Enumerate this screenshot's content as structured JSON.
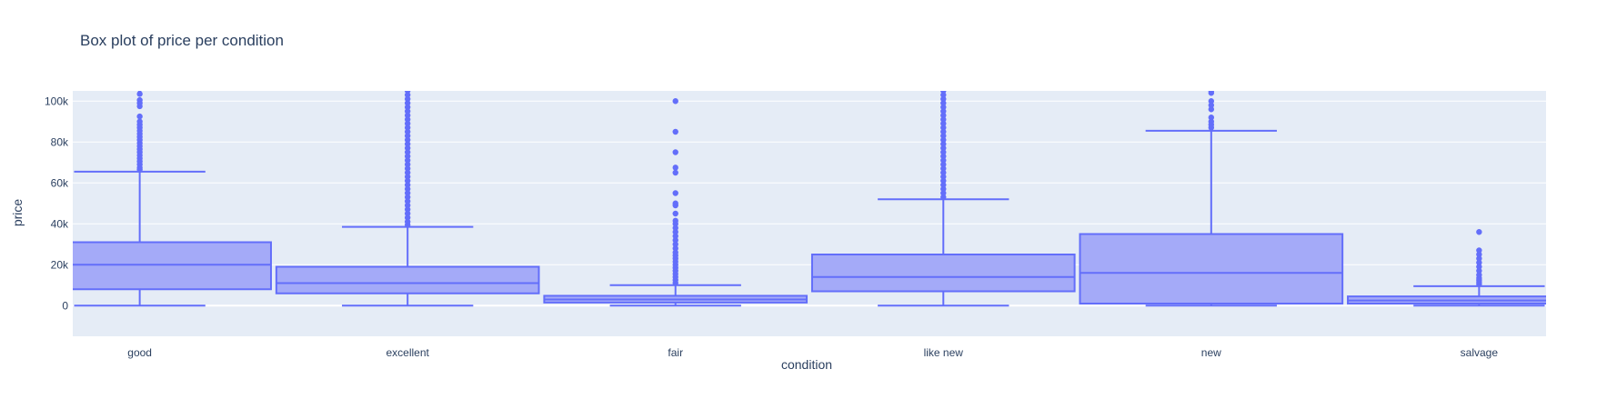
{
  "chart_data": {
    "type": "box",
    "title": "Box plot of price per condition",
    "xlabel": "condition",
    "ylabel": "price",
    "ylim": [
      -15000,
      105000
    ],
    "yticks": [
      0,
      20000,
      40000,
      60000,
      80000,
      100000
    ],
    "ytick_labels": [
      "0",
      "20k",
      "40k",
      "60k",
      "80k",
      "100k"
    ],
    "grid": true,
    "colors": {
      "box_line": "#636efa",
      "box_fill": "#a4aaf8",
      "plot_bg": "#e5ecf6",
      "grid": "#ffffff",
      "text": "#2a3f5f"
    },
    "categories": [
      "good",
      "excellent",
      "fair",
      "like new",
      "new",
      "salvage"
    ],
    "boxes": [
      {
        "category": "good",
        "min": 0,
        "q1": 8000,
        "median": 20000,
        "q3": 31000,
        "max": 65500,
        "outliers": [
          66500,
          67500,
          69000,
          70500,
          72000,
          73500,
          75000,
          76500,
          78000,
          79500,
          81000,
          82500,
          84000,
          85500,
          87000,
          88500,
          90000,
          92500,
          97500,
          99000,
          100500,
          103500,
          106000
        ]
      },
      {
        "category": "excellent",
        "min": 0,
        "q1": 6000,
        "median": 11000,
        "q3": 19000,
        "max": 38500,
        "outliers": [
          39500,
          41000,
          43000,
          45000,
          47000,
          49000,
          51000,
          53000,
          55000,
          57000,
          59000,
          61000,
          63000,
          65000,
          67000,
          69000,
          71000,
          73000,
          75000,
          77000,
          79000,
          81000,
          83000,
          85000,
          87000,
          89000,
          91000,
          93000,
          95000,
          97000,
          99000,
          101000,
          103000,
          105000
        ]
      },
      {
        "category": "fair",
        "min": 0,
        "q1": 1500,
        "median": 3000,
        "q3": 4800,
        "max": 10000,
        "outliers": [
          11000,
          12500,
          14000,
          15500,
          17000,
          18500,
          20000,
          21500,
          23000,
          24500,
          26000,
          28000,
          30000,
          32000,
          34000,
          36000,
          38000,
          40000,
          41500,
          45000,
          49000,
          50000,
          55000,
          65000,
          67500,
          75000,
          85000,
          100000
        ]
      },
      {
        "category": "like new",
        "min": 0,
        "q1": 7000,
        "median": 14000,
        "q3": 25000,
        "max": 52000,
        "outliers": [
          53000,
          55000,
          57000,
          59000,
          61000,
          63000,
          65000,
          67000,
          69000,
          71000,
          73000,
          75000,
          77000,
          79000,
          81000,
          83000,
          85000,
          87000,
          89000,
          91000,
          93000,
          95000,
          97000,
          99000,
          101000,
          103000,
          105000
        ]
      },
      {
        "category": "new",
        "min": 0,
        "q1": 1000,
        "median": 16000,
        "q3": 35000,
        "max": 85500,
        "outliers": [
          87000,
          88500,
          90000,
          92000,
          96000,
          98000,
          100000,
          104000,
          105000
        ]
      },
      {
        "category": "salvage",
        "min": 0,
        "q1": 1000,
        "median": 2500,
        "q3": 4500,
        "max": 9500,
        "outliers": [
          10500,
          11500,
          12500,
          13500,
          15000,
          17000,
          19000,
          21000,
          23000,
          25000,
          27000,
          36000
        ]
      }
    ]
  }
}
